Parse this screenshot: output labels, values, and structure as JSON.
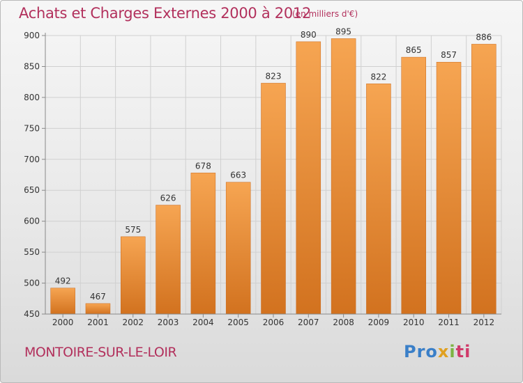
{
  "header": {
    "title": "Achats et Charges Externes 2000 à 2012",
    "unit": "(en milliers d'€)"
  },
  "footer": {
    "commune": "MONTOIRE-SUR-LE-LOIR",
    "logo_parts": [
      "Pro",
      "x",
      "i",
      "ti"
    ]
  },
  "colors": {
    "title": "#b2305c",
    "bar_top": "#f6a552",
    "bar_bottom": "#d2721f",
    "grid": "#d0d0d0",
    "axis_text": "#333333"
  },
  "chart_data": {
    "type": "bar",
    "categories": [
      "2000",
      "2001",
      "2002",
      "2003",
      "2004",
      "2005",
      "2006",
      "2007",
      "2008",
      "2009",
      "2010",
      "2011",
      "2012"
    ],
    "values": [
      492,
      467,
      575,
      626,
      678,
      663,
      823,
      890,
      895,
      822,
      865,
      857,
      886
    ],
    "ylim": [
      450,
      900
    ],
    "yticks": [
      450,
      500,
      550,
      600,
      650,
      700,
      750,
      800,
      850,
      900
    ],
    "grid": true
  }
}
